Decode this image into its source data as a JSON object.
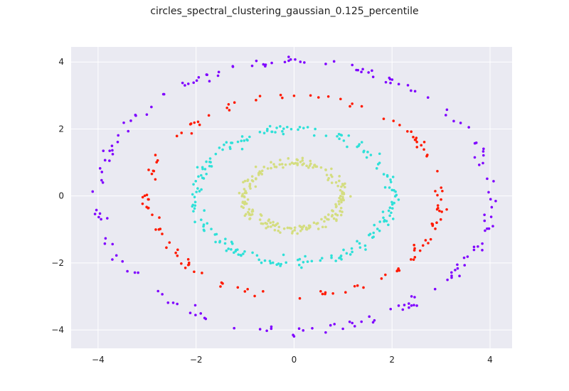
{
  "figure": {
    "title": "circles_spectral_clustering_gaussian_0.125_percentile"
  },
  "chart_data": {
    "type": "scatter",
    "title": "circles_spectral_clustering_gaussian_0.125_percentile",
    "xlabel": "",
    "ylabel": "",
    "xlim": [
      -4.55,
      4.45
    ],
    "ylim": [
      -4.55,
      4.45
    ],
    "xticks": [
      -4,
      -2,
      0,
      2,
      4
    ],
    "yticks": [
      -4,
      -2,
      0,
      2,
      4
    ],
    "xtick_labels": [
      "−4",
      "−2",
      "0",
      "2",
      "4"
    ],
    "ytick_labels": [
      "−4",
      "−2",
      "0",
      "2",
      "4"
    ],
    "grid": true,
    "background": "#eaeaf2",
    "grid_color": "#ffffff",
    "clusters": [
      {
        "color": "#d4dd80",
        "shape": "ellipse",
        "rx": 1.0,
        "ry": 1.0,
        "n": 200,
        "noise": 0.06
      },
      {
        "color": "#2ee0d8",
        "shape": "ellipse",
        "rx": 2.0,
        "ry": 2.0,
        "n": 200,
        "noise": 0.06
      },
      {
        "color": "#ff1a00",
        "shape": "ellipse",
        "rx": 3.0,
        "ry": 3.0,
        "n": 130,
        "noise": 0.07
      },
      {
        "color": "#7f00ff",
        "shape": "ellipse",
        "rx": 4.0,
        "ry": 4.0,
        "n": 170,
        "noise": 0.07
      }
    ]
  }
}
